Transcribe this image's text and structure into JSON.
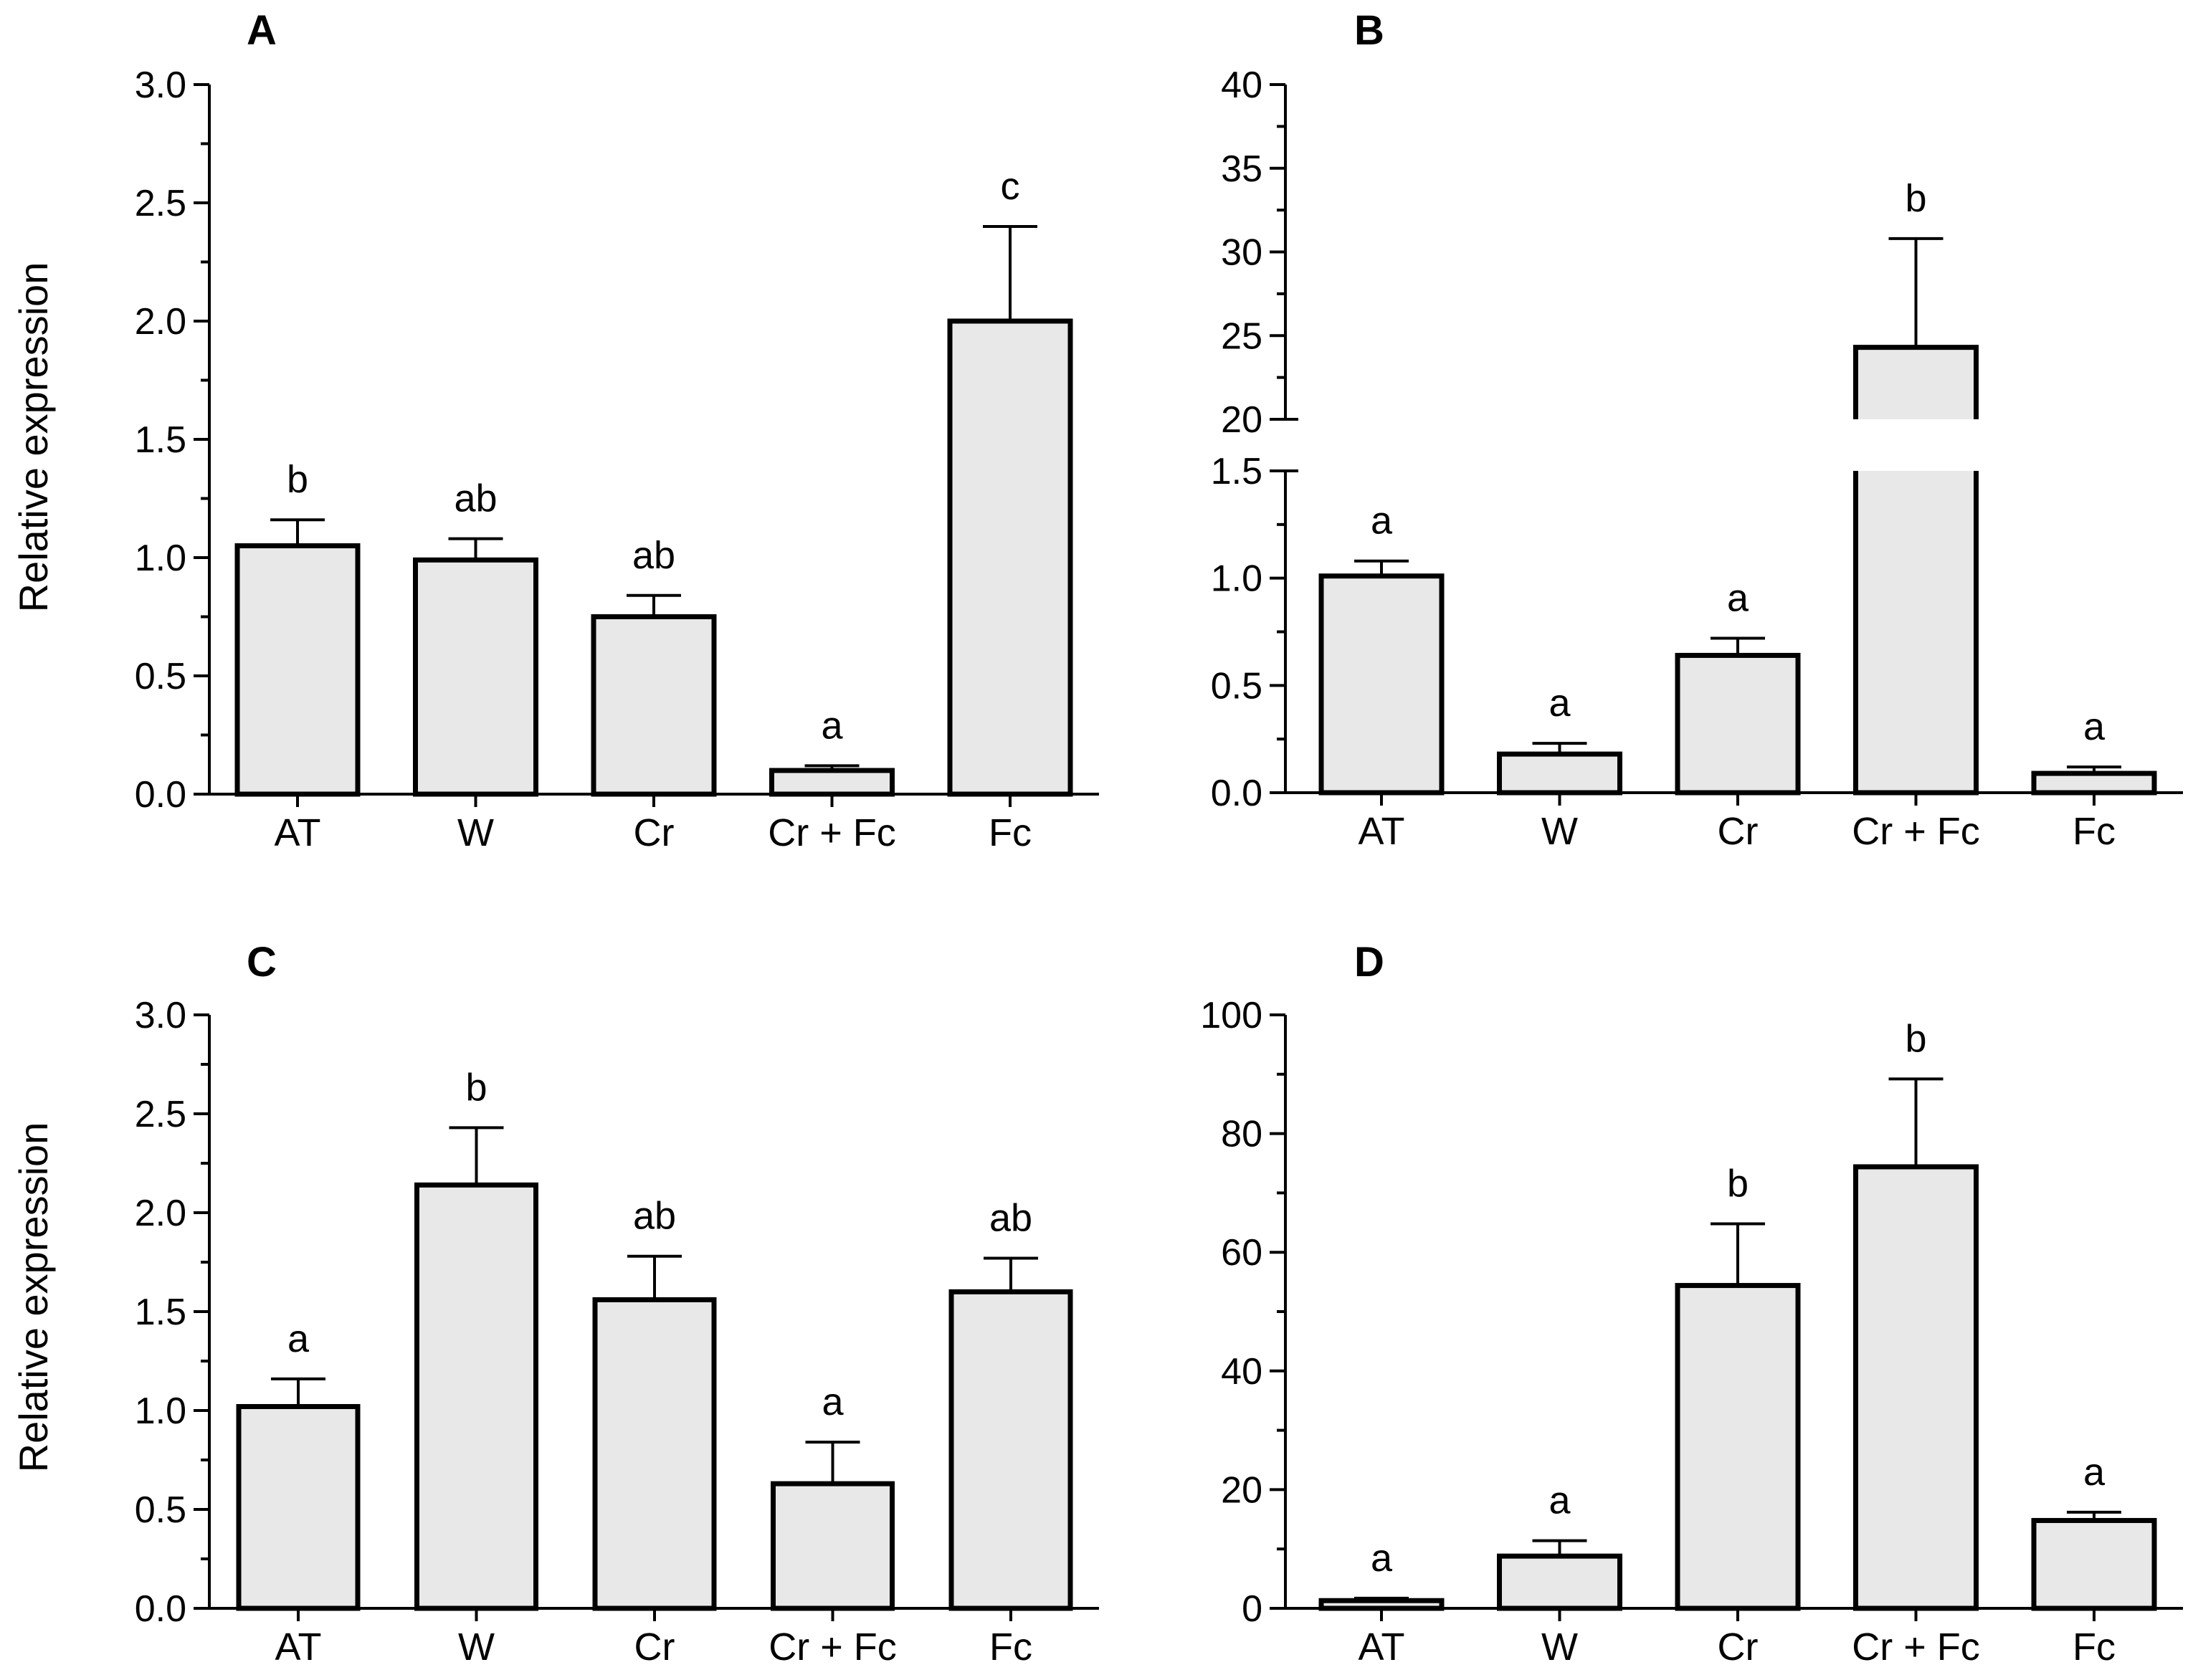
{
  "chart_data": [
    {
      "panel": "A",
      "type": "bar",
      "ylabel": "Relative expression",
      "categories": [
        "AT",
        "W",
        "Cr",
        "Cr + Fc",
        "Fc"
      ],
      "values": [
        1.05,
        0.99,
        0.75,
        0.1,
        2.0
      ],
      "errors": [
        0.11,
        0.09,
        0.09,
        0.02,
        0.4
      ],
      "significance": [
        "b",
        "ab",
        "ab",
        "a",
        "c"
      ],
      "ylim": [
        0,
        3.0
      ],
      "yticks": [
        0.0,
        0.5,
        1.0,
        1.5,
        2.0,
        2.5,
        3.0
      ],
      "ytick_labels": [
        "0.0",
        "0.5",
        "1.0",
        "1.5",
        "2.0",
        "2.5",
        "3.0"
      ]
    },
    {
      "panel": "B",
      "type": "bar",
      "ylabel": "",
      "categories": [
        "AT",
        "W",
        "Cr",
        "Cr + Fc",
        "Fc"
      ],
      "values": [
        1.01,
        0.18,
        0.64,
        24.3,
        0.09
      ],
      "errors": [
        0.07,
        0.05,
        0.08,
        6.5,
        0.03
      ],
      "significance": [
        "a",
        "a",
        "a",
        "b",
        "a"
      ],
      "broken_axis": {
        "lower_range": [
          0,
          1.5
        ],
        "upper_range": [
          20,
          40
        ],
        "lower_ticks": [
          0.0,
          0.5,
          1.0,
          1.5
        ],
        "lower_tick_labels": [
          "0.0",
          "0.5",
          "1.0",
          "1.5"
        ],
        "upper_ticks": [
          20,
          25,
          30,
          35,
          40
        ],
        "upper_tick_labels": [
          "20",
          "25",
          "30",
          "35",
          "40"
        ]
      }
    },
    {
      "panel": "C",
      "type": "bar",
      "ylabel": "Relative expression",
      "categories": [
        "AT",
        "W",
        "Cr",
        "Cr + Fc",
        "Fc"
      ],
      "values": [
        1.02,
        2.14,
        1.56,
        0.63,
        1.6
      ],
      "errors": [
        0.14,
        0.29,
        0.22,
        0.21,
        0.17
      ],
      "significance": [
        "a",
        "b",
        "ab",
        "a",
        "ab"
      ],
      "ylim": [
        0,
        3.0
      ],
      "yticks": [
        0.0,
        0.5,
        1.0,
        1.5,
        2.0,
        2.5,
        3.0
      ],
      "ytick_labels": [
        "0.0",
        "0.5",
        "1.0",
        "1.5",
        "2.0",
        "2.5",
        "3.0"
      ]
    },
    {
      "panel": "D",
      "type": "bar",
      "ylabel": "",
      "categories": [
        "AT",
        "W",
        "Cr",
        "Cr + Fc",
        "Fc"
      ],
      "values": [
        1.3,
        8.8,
        54.4,
        74.4,
        14.8
      ],
      "errors": [
        0.4,
        2.6,
        10.4,
        14.8,
        1.4
      ],
      "significance": [
        "a",
        "a",
        "b",
        "b",
        "a"
      ],
      "ylim": [
        0,
        100
      ],
      "yticks": [
        0,
        20,
        40,
        60,
        80,
        100
      ],
      "ytick_labels": [
        "0",
        "20",
        "40",
        "60",
        "80",
        "100"
      ]
    }
  ]
}
